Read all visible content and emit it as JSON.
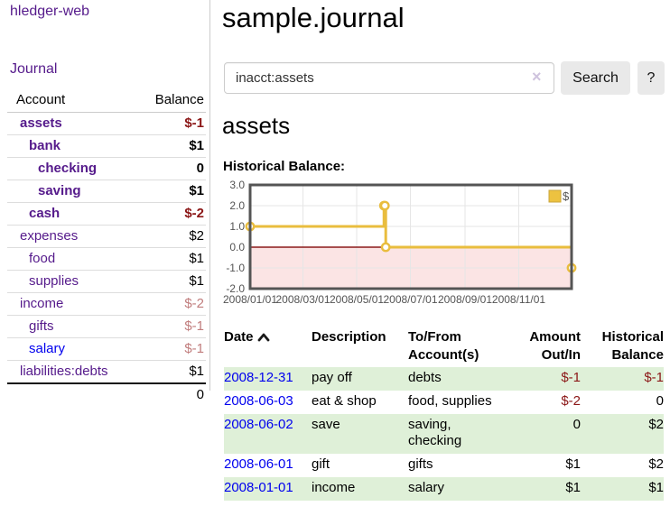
{
  "app": {
    "name": "hledger-web"
  },
  "nav": {
    "journal": "Journal"
  },
  "sidebar": {
    "columns": {
      "account": "Account",
      "balance": "Balance"
    },
    "accounts": [
      {
        "name": "assets",
        "balance": "$-1"
      },
      {
        "name": "bank",
        "balance": "$1"
      },
      {
        "name": "checking",
        "balance": "0"
      },
      {
        "name": "saving",
        "balance": "$1"
      },
      {
        "name": "cash",
        "balance": "$-2"
      },
      {
        "name": "expenses",
        "balance": "$2"
      },
      {
        "name": "food",
        "balance": "$1"
      },
      {
        "name": "supplies",
        "balance": "$1"
      },
      {
        "name": "income",
        "balance": "$-2"
      },
      {
        "name": "gifts",
        "balance": "$-1"
      },
      {
        "name": "salary",
        "balance": "$-1"
      },
      {
        "name": "liabilities:debts",
        "balance": "$1"
      }
    ],
    "total": "0"
  },
  "main": {
    "title": "sample.journal",
    "search": {
      "value": "inacct:assets",
      "clear_icon": "×",
      "search_button": "Search",
      "help_button": "?"
    },
    "account_heading": "assets",
    "chart_heading": "Historical Balance:"
  },
  "chart_data": {
    "type": "line",
    "title": "Historical Balance",
    "legend": [
      {
        "label": "$",
        "color": "#edc240"
      }
    ],
    "legend_position": "top-right",
    "grid": true,
    "ylim": [
      -2,
      3
    ],
    "y_ticks": [
      3.0,
      2.0,
      1.0,
      0.0,
      -1.0,
      -2.0
    ],
    "x_ticks": [
      "2008/01/01",
      "2008/03/01",
      "2008/05/01",
      "2008/07/01",
      "2008/09/01",
      "2008/11/01"
    ],
    "x_range": [
      "2008-01-01",
      "2008-12-31"
    ],
    "series": [
      {
        "name": "$",
        "color": "#e9bd3e",
        "style": "steps",
        "points": [
          [
            "2008-01-01",
            1
          ],
          [
            "2008-06-01",
            2
          ],
          [
            "2008-06-02",
            2
          ],
          [
            "2008-06-03",
            0
          ],
          [
            "2008-12-31",
            -1
          ]
        ]
      }
    ],
    "negative_region_color": "#fbe4e4",
    "zero_line_color": "#8b1a1a",
    "border_color": "#545454",
    "gridline_color": "#e6e6e6",
    "tick_label_color": "#545454"
  },
  "register": {
    "columns": {
      "date": "Date",
      "description": "Description",
      "account": "To/From\nAccount(s)",
      "amount": "Amount\nOut/In",
      "balance": "Historical\nBalance"
    },
    "rows": [
      {
        "date": "2008-12-31",
        "description": "pay off",
        "account": "debts",
        "amount": "$-1",
        "balance": "$-1"
      },
      {
        "date": "2008-06-03",
        "description": "eat & shop",
        "account": "food, supplies",
        "amount": "$-2",
        "balance": "0"
      },
      {
        "date": "2008-06-02",
        "description": "save",
        "account": "saving,\nchecking",
        "amount": "0",
        "balance": "$2"
      },
      {
        "date": "2008-06-01",
        "description": "gift",
        "account": "gifts",
        "amount": "$1",
        "balance": "$2"
      },
      {
        "date": "2008-01-01",
        "description": "income",
        "account": "salary",
        "amount": "$1",
        "balance": "$1"
      }
    ]
  },
  "colors": {
    "link_purple": "#551a8b",
    "link_blue": "#0000ee",
    "negative_strong": "#8b1616",
    "negative_soft": "#c17d7d",
    "row_stripe_green": "#dff0d8"
  }
}
